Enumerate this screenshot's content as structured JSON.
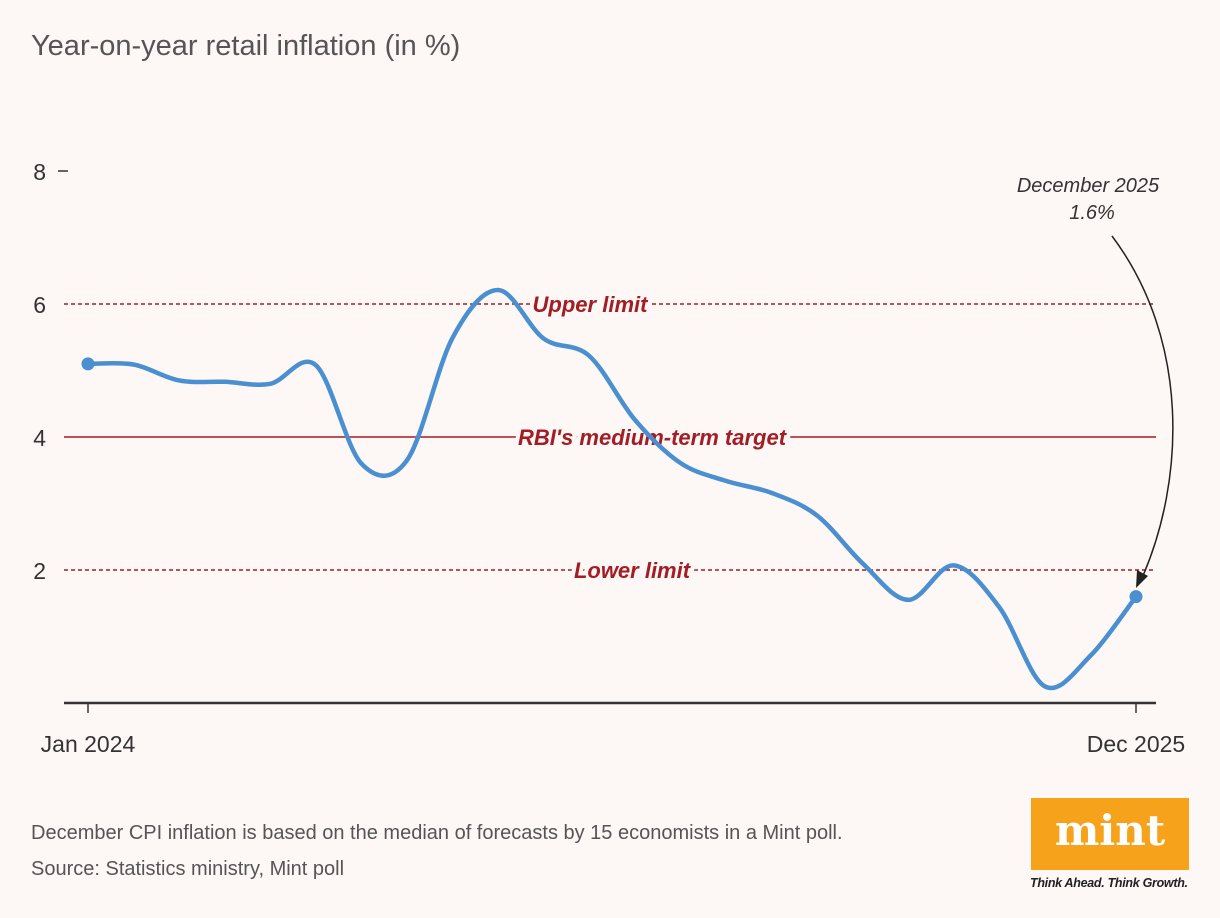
{
  "chart_data": {
    "type": "line",
    "title": "Year-on-year retail inflation (in %)",
    "xlabel": "",
    "ylabel": "",
    "ylim": [
      0,
      8
    ],
    "yticks": [
      2,
      4,
      6,
      8
    ],
    "xtick_labels": [
      "Jan 2024",
      "Dec 2025"
    ],
    "x": [
      "Jan 2024",
      "Feb 2024",
      "Mar 2024",
      "Apr 2024",
      "May 2024",
      "Jun 2024",
      "Jul 2024",
      "Aug 2024",
      "Sep 2024",
      "Oct 2024",
      "Nov 2024",
      "Dec 2024",
      "Jan 2025",
      "Feb 2025",
      "Mar 2025",
      "Apr 2025",
      "May 2025",
      "Jun 2025",
      "Jul 2025",
      "Aug 2025",
      "Sep 2025",
      "Oct 2025",
      "Nov 2025",
      "Dec 2025"
    ],
    "series": [
      {
        "name": "Retail inflation",
        "color": "#4a8fd0",
        "values": [
          5.1,
          5.09,
          4.85,
          4.83,
          4.8,
          5.08,
          3.6,
          3.65,
          5.49,
          6.21,
          5.48,
          5.22,
          4.26,
          3.61,
          3.34,
          3.16,
          2.82,
          2.1,
          1.55,
          2.07,
          1.44,
          0.25,
          0.71,
          1.6
        ]
      }
    ],
    "reference_lines": [
      {
        "label": "Upper limit",
        "value": 6,
        "style": "dashed"
      },
      {
        "label": "RBI's medium-term target",
        "value": 4,
        "style": "solid"
      },
      {
        "label": "Lower limit",
        "value": 2,
        "style": "dashed"
      }
    ],
    "annotation": {
      "line1": "December 2025",
      "line2": "1.6%"
    },
    "ref_color": "#a31d24"
  },
  "footer": {
    "note": "December CPI inflation is based on the median of forecasts by 15 economists in a Mint poll.",
    "source": "Source: Statistics ministry, Mint poll"
  },
  "logo": {
    "name": "mint",
    "tagline": "Think Ahead. Think Growth."
  }
}
